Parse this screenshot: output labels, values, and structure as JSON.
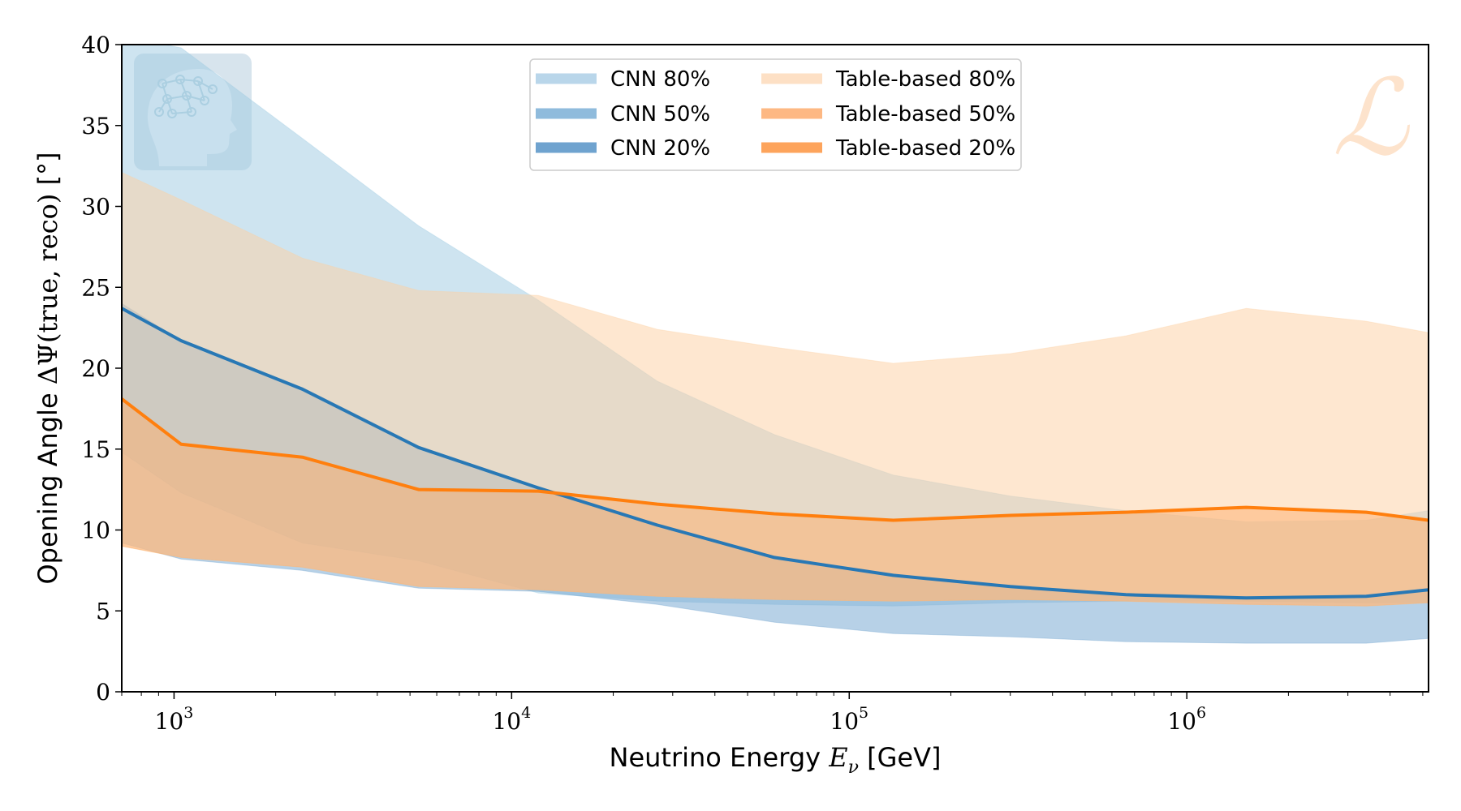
{
  "chart_data": {
    "type": "area",
    "title": "",
    "xlabel": {
      "prefix": "Neutrino Energy ",
      "symbol": "E",
      "subscript": "ν",
      "suffix": " [GeV]"
    },
    "ylabel": {
      "prefix": "Opening Angle ",
      "symbol": "ΔΨ",
      "args": "(true, reco)",
      "unit": " [°]"
    },
    "xscale": "log",
    "xlim": [
      700,
      5200000
    ],
    "ylim": [
      0,
      40
    ],
    "grid": false,
    "legend": {
      "placement": "top-center",
      "columns": 2
    },
    "x_ticks": [
      {
        "base": "10",
        "exp": "3",
        "value": 1000
      },
      {
        "base": "10",
        "exp": "4",
        "value": 10000
      },
      {
        "base": "10",
        "exp": "5",
        "value": 100000
      },
      {
        "base": "10",
        "exp": "6",
        "value": 1000000
      }
    ],
    "y_ticks": [
      {
        "label": "0",
        "value": 0
      },
      {
        "label": "5",
        "value": 5
      },
      {
        "label": "10",
        "value": 10
      },
      {
        "label": "15",
        "value": 15
      },
      {
        "label": "20",
        "value": 20
      },
      {
        "label": "25",
        "value": 25
      },
      {
        "label": "30",
        "value": 30
      },
      {
        "label": "35",
        "value": 35
      },
      {
        "label": "40",
        "value": 40
      }
    ],
    "x": [
      700,
      1050,
      2400,
      5300,
      12000,
      27000,
      60000,
      135000,
      300000,
      660000,
      1500000,
      3400000,
      5200000
    ],
    "series": [
      {
        "name": "CNN 80%",
        "kind": "band",
        "color": "#9ecae1",
        "opacity": 0.5,
        "lower": [
          14.8,
          12.3,
          9.2,
          8.1,
          6.1,
          5.6,
          5.4,
          5.3,
          5.5,
          5.6,
          5.6,
          5.5,
          5.5
        ],
        "upper": [
          40.5,
          39.8,
          34.2,
          28.8,
          24.2,
          19.2,
          15.9,
          13.4,
          12.1,
          11.2,
          10.5,
          10.6,
          11.2
        ]
      },
      {
        "name": "CNN 50%",
        "kind": "band",
        "color": "#6fa3cf",
        "opacity": 0.5,
        "lower": [
          9.2,
          8.2,
          7.5,
          6.4,
          6.2,
          5.4,
          4.3,
          3.6,
          3.4,
          3.1,
          3.0,
          3.0,
          3.3
        ],
        "upper": [
          24.0,
          21.7,
          18.8,
          15.2,
          12.5,
          10.4,
          8.3,
          7.2,
          6.5,
          6.0,
          5.8,
          5.9,
          6.3
        ]
      },
      {
        "name": "CNN 20%",
        "kind": "line",
        "color": "#2878b5",
        "values": [
          23.7,
          21.7,
          18.7,
          15.1,
          12.6,
          10.3,
          8.3,
          7.2,
          6.5,
          6.0,
          5.8,
          5.9,
          6.3
        ]
      },
      {
        "name": "Table-based 80%",
        "kind": "band",
        "color": "#fdd0a2",
        "opacity": 0.5,
        "lower": [
          9.0,
          8.3,
          7.7,
          6.5,
          6.3,
          5.9,
          5.7,
          5.6,
          5.7,
          5.6,
          5.4,
          5.3,
          5.5
        ],
        "upper": [
          32.1,
          30.4,
          26.8,
          24.8,
          24.5,
          22.4,
          21.3,
          20.3,
          20.9,
          22.0,
          23.7,
          22.9,
          22.2
        ]
      },
      {
        "name": "Table-based 50%",
        "kind": "band",
        "color": "#fdae6b",
        "opacity": 0.5,
        "lower": [
          9.0,
          8.3,
          7.7,
          6.5,
          6.3,
          5.9,
          5.7,
          5.6,
          5.7,
          5.6,
          5.4,
          5.3,
          5.5
        ],
        "upper": [
          18.1,
          15.3,
          14.5,
          12.5,
          12.4,
          11.6,
          11.0,
          10.6,
          10.9,
          11.1,
          11.4,
          11.1,
          10.6
        ]
      },
      {
        "name": "Table-based 20%",
        "kind": "line",
        "color": "#ff7f0e",
        "values": [
          18.1,
          15.3,
          14.5,
          12.5,
          12.4,
          11.6,
          11.0,
          10.6,
          10.9,
          11.1,
          11.4,
          11.1,
          10.6
        ]
      }
    ]
  },
  "legend_items": [
    {
      "label": "CNN 80%",
      "color": "#b9d6ea"
    },
    {
      "label": "CNN 50%",
      "color": "#8fbbdc"
    },
    {
      "label": "CNN 20%",
      "color": "#6fa3cf"
    },
    {
      "label": "Table-based 80%",
      "color": "#fde0c5"
    },
    {
      "label": "Table-based 50%",
      "color": "#fdb883"
    },
    {
      "label": "Table-based 20%",
      "color": "#fda45c"
    }
  ],
  "watermark": {
    "letter": "ℒ",
    "color": "#fde3cc",
    "brain_logo_color": "#8fb8cf"
  }
}
